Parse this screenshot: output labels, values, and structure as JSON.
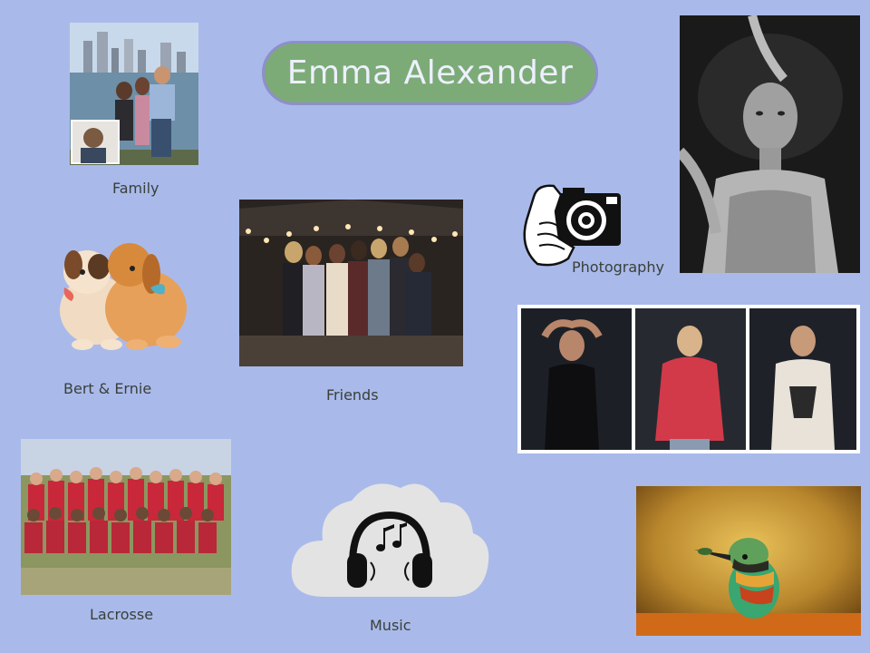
{
  "title": "Emma Alexander",
  "captions": {
    "family": "Family",
    "pets": "Bert & Ernie",
    "friends": "Friends",
    "photography": "Photography",
    "lacrosse": "Lacrosse",
    "music": "Music"
  },
  "colors": {
    "background": "#a9baea",
    "title_pill": "#7dab78",
    "title_border": "#8e8fcc",
    "title_text": "#eef0ff"
  },
  "icons": [
    "camera-hand-icon",
    "headphones-icon",
    "music-notes-icon",
    "cloud-icon"
  ]
}
